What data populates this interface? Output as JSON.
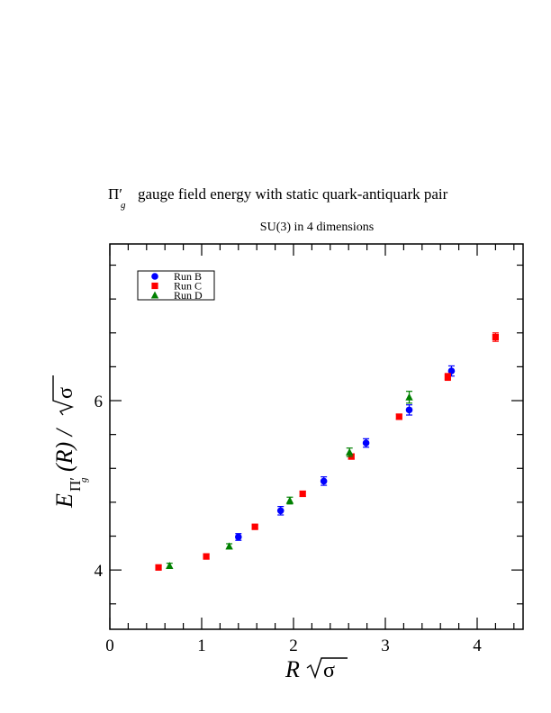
{
  "chart_data": {
    "type": "scatter",
    "title_symbol": "Π",
    "title_symbol_prime": "′",
    "title_symbol_sub": "g",
    "title_text": "gauge field energy with static quark-antiquark pair",
    "subtitle": "SU(3) in 4 dimensions",
    "xlabel_var": "R",
    "xlabel_sigma": "σ",
    "ylabel_var": "E",
    "ylabel_sub": "Π",
    "ylabel_sub_prime": "′",
    "ylabel_sub_g": "g",
    "ylabel_mid": "(R) /",
    "ylabel_sigma": "σ",
    "xlim": [
      0,
      4.5
    ],
    "ylim": [
      3.3,
      7.85
    ],
    "x_ticks": [
      0,
      1,
      2,
      3,
      4
    ],
    "x_tick_labels": [
      "0",
      "1",
      "2",
      "3",
      "4"
    ],
    "y_ticks": [
      4,
      6
    ],
    "y_tick_labels": [
      "4",
      "6"
    ],
    "grid": false,
    "legend_position": "top-left",
    "series": [
      {
        "name": "Run B",
        "color": "#0000ff",
        "marker": "circle",
        "points": [
          {
            "x": 1.4,
            "y": 4.39,
            "err": 0.04
          },
          {
            "x": 1.86,
            "y": 4.7,
            "err": 0.05
          },
          {
            "x": 2.33,
            "y": 5.05,
            "err": 0.05
          },
          {
            "x": 2.79,
            "y": 5.5,
            "err": 0.05
          },
          {
            "x": 3.26,
            "y": 5.89,
            "err": 0.06
          },
          {
            "x": 3.72,
            "y": 6.35,
            "err": 0.06
          }
        ]
      },
      {
        "name": "Run C",
        "color": "#ff0000",
        "marker": "square",
        "points": [
          {
            "x": 0.53,
            "y": 4.03,
            "err": 0.02
          },
          {
            "x": 1.05,
            "y": 4.16,
            "err": 0.03
          },
          {
            "x": 1.58,
            "y": 4.51,
            "err": 0.02
          },
          {
            "x": 2.1,
            "y": 4.9,
            "err": 0.03
          },
          {
            "x": 2.63,
            "y": 5.34,
            "err": 0.03
          },
          {
            "x": 3.15,
            "y": 5.81,
            "err": 0.03
          },
          {
            "x": 3.68,
            "y": 6.28,
            "err": 0.04
          },
          {
            "x": 4.2,
            "y": 6.75,
            "err": 0.05
          }
        ]
      },
      {
        "name": "Run D",
        "color": "#008000",
        "marker": "triangle",
        "points": [
          {
            "x": 0.65,
            "y": 4.05,
            "err": 0.03
          },
          {
            "x": 1.3,
            "y": 4.28,
            "err": 0.03
          },
          {
            "x": 1.96,
            "y": 4.82,
            "err": 0.04
          },
          {
            "x": 2.61,
            "y": 5.39,
            "err": 0.05
          },
          {
            "x": 3.26,
            "y": 6.04,
            "err": 0.07
          }
        ]
      }
    ]
  }
}
